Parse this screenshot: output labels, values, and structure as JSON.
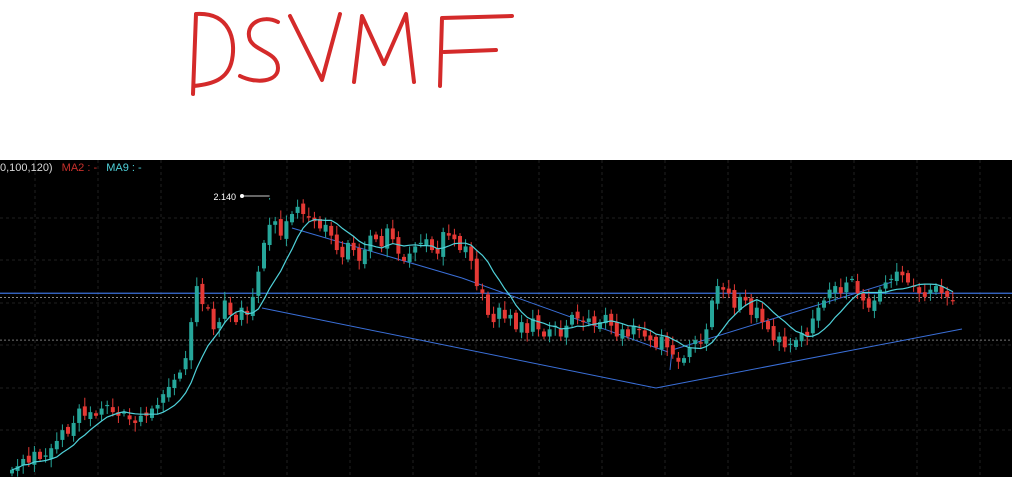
{
  "annotation": {
    "handwritten_text": "DSVMF",
    "ink_color": "#d42a2a"
  },
  "legend": {
    "params": "0,100,120)",
    "ma2_label": "MA2 : -",
    "ma9_label": "MA9 : -",
    "ma2_color": "#c9302c",
    "ma9_color": "#4fd1d9"
  },
  "chart_data": {
    "type": "candlestick",
    "peak_label": "2.140",
    "up_color": "#26a69a",
    "down_color": "#e53935",
    "ma_color": "#4fd1d9",
    "trendline_color": "#3a6fd8",
    "grid": true,
    "y_range": [
      1.35,
      2.18
    ],
    "horizontal_levels": [
      1.86,
      1.865,
      1.73
    ],
    "closes": [
      1.37,
      1.38,
      1.4,
      1.39,
      1.42,
      1.4,
      1.41,
      1.43,
      1.45,
      1.48,
      1.47,
      1.5,
      1.54,
      1.52,
      1.53,
      1.52,
      1.54,
      1.55,
      1.53,
      1.52,
      1.53,
      1.51,
      1.5,
      1.52,
      1.52,
      1.54,
      1.55,
      1.58,
      1.6,
      1.62,
      1.64,
      1.68,
      1.78,
      1.88,
      1.83,
      1.82,
      1.76,
      1.78,
      1.84,
      1.8,
      1.78,
      1.82,
      1.8,
      1.85,
      1.92,
      2.0,
      2.05,
      2.06,
      2.02,
      2.06,
      2.08,
      2.1,
      2.08,
      2.07,
      2.06,
      2.04,
      2.05,
      2.02,
      1.98,
      1.96,
      2.0,
      1.98,
      1.95,
      1.98,
      2.02,
      2.01,
      1.99,
      2.04,
      2.01,
      1.97,
      1.95,
      1.97,
      1.99,
      2.0,
      2.01,
      1.98,
      1.97,
      2.03,
      2.02,
      2.01,
      1.98,
      1.99,
      1.95,
      1.88,
      1.86,
      1.8,
      1.78,
      1.82,
      1.79,
      1.8,
      1.76,
      1.78,
      1.75,
      1.79,
      1.76,
      1.74,
      1.76,
      1.77,
      1.74,
      1.77,
      1.8,
      1.79,
      1.78,
      1.79,
      1.77,
      1.78,
      1.8,
      1.77,
      1.74,
      1.76,
      1.74,
      1.77,
      1.76,
      1.74,
      1.73,
      1.71,
      1.74,
      1.71,
      1.69,
      1.67,
      1.68,
      1.71,
      1.73,
      1.72,
      1.76,
      1.84,
      1.88,
      1.87,
      1.86,
      1.82,
      1.85,
      1.84,
      1.8,
      1.82,
      1.78,
      1.76,
      1.73,
      1.74,
      1.71,
      1.72,
      1.73,
      1.75,
      1.74,
      1.79,
      1.82,
      1.84,
      1.87,
      1.88,
      1.86,
      1.89,
      1.9,
      1.86,
      1.84,
      1.82,
      1.84,
      1.87,
      1.89,
      1.9,
      1.92,
      1.91,
      1.89,
      1.88,
      1.86,
      1.85,
      1.87,
      1.88,
      1.86,
      1.85,
      1.84
    ]
  }
}
